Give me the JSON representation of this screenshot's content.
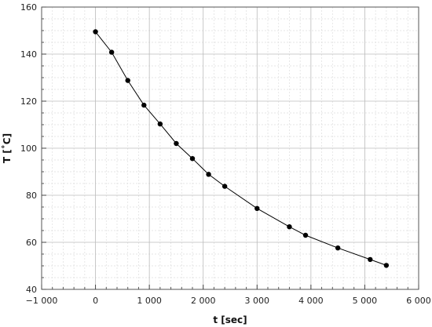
{
  "chart_data": {
    "type": "scatter",
    "title": "",
    "xlabel": "t [sec]",
    "ylabel": "T  [˚C]",
    "xlim": [
      -1000,
      6000
    ],
    "ylim": [
      40,
      160
    ],
    "x_ticks": [
      -1000,
      0,
      1000,
      2000,
      3000,
      4000,
      5000,
      6000
    ],
    "x_tick_labels": [
      "−1 000",
      "0",
      "1 000",
      "2 000",
      "3 000",
      "4 000",
      "5 000",
      "6 000"
    ],
    "y_ticks": [
      40,
      60,
      80,
      100,
      120,
      140,
      160
    ],
    "y_tick_labels": [
      "40",
      "60",
      "80",
      "100",
      "120",
      "140",
      "160"
    ],
    "grid": true,
    "minor_grid": true,
    "series": [
      {
        "connected": true,
        "color": "#000000",
        "x": [
          0,
          300,
          600,
          900,
          1200,
          1500,
          1800,
          2100,
          2400,
          3000,
          3600,
          3900,
          4500,
          5100,
          5400
        ],
        "y": [
          149.5,
          140.8,
          128.8,
          118.3,
          110.3,
          102.0,
          95.6,
          88.9,
          83.8,
          74.4,
          66.6,
          63.0,
          57.6,
          52.7,
          50.2
        ]
      }
    ]
  }
}
